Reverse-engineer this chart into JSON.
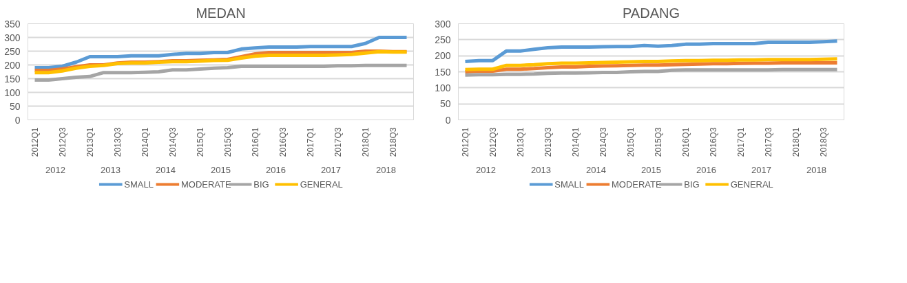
{
  "chart_data": [
    {
      "type": "line",
      "title": "MEDAN",
      "categories": [
        "2012Q1",
        null,
        "2012Q3",
        null,
        "2013Q1",
        null,
        "2013Q3",
        null,
        "2014Q1",
        null,
        "2014Q3",
        null,
        "2015Q1",
        null,
        "2015Q3",
        null,
        "2016Q1",
        null,
        "2016Q3",
        null,
        "2017Q1",
        null,
        "2017Q3",
        null,
        "2018Q1",
        null,
        "2018Q3",
        null
      ],
      "annotations": [
        "2012",
        "2013",
        "2014",
        "2015",
        "2016",
        "2017",
        "2018"
      ],
      "ylim": [
        0,
        350
      ],
      "yticks": [
        0,
        50,
        100,
        150,
        200,
        250,
        300,
        350
      ],
      "grid": "y",
      "legend": "bottom",
      "marker": "none",
      "line_style": "solid",
      "series": [
        {
          "name": "SMALL",
          "color": "#5b9bd5",
          "values": [
            190,
            190,
            195,
            210,
            230,
            230,
            230,
            233,
            233,
            233,
            238,
            242,
            242,
            245,
            245,
            258,
            262,
            265,
            265,
            265,
            267,
            267,
            267,
            267,
            278,
            300,
            300,
            300
          ]
        },
        {
          "name": "MODERATE",
          "color": "#ed7d31",
          "values": [
            180,
            180,
            185,
            193,
            200,
            200,
            207,
            210,
            210,
            212,
            215,
            215,
            217,
            218,
            220,
            230,
            240,
            245,
            245,
            245,
            245,
            245,
            245,
            245,
            250,
            250,
            248,
            248
          ]
        },
        {
          "name": "BIG",
          "color": "#a5a5a5",
          "values": [
            145,
            145,
            150,
            155,
            158,
            172,
            172,
            172,
            173,
            175,
            182,
            182,
            185,
            188,
            190,
            195,
            195,
            195,
            195,
            195,
            195,
            195,
            197,
            197,
            198,
            198,
            198,
            198
          ]
        },
        {
          "name": "GENERAL",
          "color": "#ffc000",
          "values": [
            172,
            172,
            178,
            188,
            195,
            198,
            205,
            207,
            207,
            210,
            212,
            212,
            214,
            216,
            217,
            225,
            232,
            235,
            235,
            235,
            235,
            235,
            236,
            238,
            243,
            248,
            247,
            247
          ]
        }
      ]
    },
    {
      "type": "line",
      "title": "PADANG",
      "categories": [
        "2012Q1",
        null,
        "2012Q3",
        null,
        "2013Q1",
        null,
        "2013Q3",
        null,
        "2014Q1",
        null,
        "2014Q3",
        null,
        "2015Q1",
        null,
        "2015Q3",
        null,
        "2016Q1",
        null,
        "2016Q3",
        null,
        "2017Q1",
        null,
        "2017Q3",
        null,
        "2018Q1",
        null,
        "2018Q3",
        null
      ],
      "annotations": [
        "2012",
        "2013",
        "2014",
        "2015",
        "2016",
        "2017",
        "2018"
      ],
      "ylim": [
        0,
        300
      ],
      "yticks": [
        0,
        50,
        100,
        150,
        200,
        250,
        300
      ],
      "grid": "y",
      "legend": "bottom",
      "marker": "none",
      "line_style": "solid",
      "series": [
        {
          "name": "SMALL",
          "color": "#5b9bd5",
          "values": [
            182,
            185,
            185,
            215,
            215,
            220,
            225,
            227,
            227,
            227,
            228,
            229,
            229,
            232,
            230,
            232,
            236,
            236,
            238,
            238,
            238,
            238,
            242,
            242,
            242,
            242,
            244,
            246
          ]
        },
        {
          "name": "MODERATE",
          "color": "#ed7d31",
          "values": [
            150,
            152,
            152,
            158,
            158,
            160,
            163,
            165,
            165,
            167,
            168,
            169,
            170,
            171,
            171,
            172,
            173,
            174,
            175,
            175,
            176,
            177,
            177,
            178,
            178,
            178,
            178,
            178
          ]
        },
        {
          "name": "BIG",
          "color": "#a5a5a5",
          "values": [
            140,
            141,
            141,
            142,
            142,
            143,
            145,
            146,
            146,
            147,
            148,
            148,
            150,
            151,
            151,
            155,
            156,
            156,
            156,
            156,
            156,
            156,
            156,
            157,
            157,
            157,
            157,
            157
          ]
        },
        {
          "name": "GENERAL",
          "color": "#ffc000",
          "values": [
            157,
            158,
            158,
            170,
            170,
            172,
            175,
            177,
            177,
            178,
            179,
            180,
            181,
            182,
            182,
            184,
            185,
            185,
            186,
            186,
            187,
            187,
            188,
            188,
            188,
            188,
            189,
            190
          ]
        }
      ]
    }
  ]
}
